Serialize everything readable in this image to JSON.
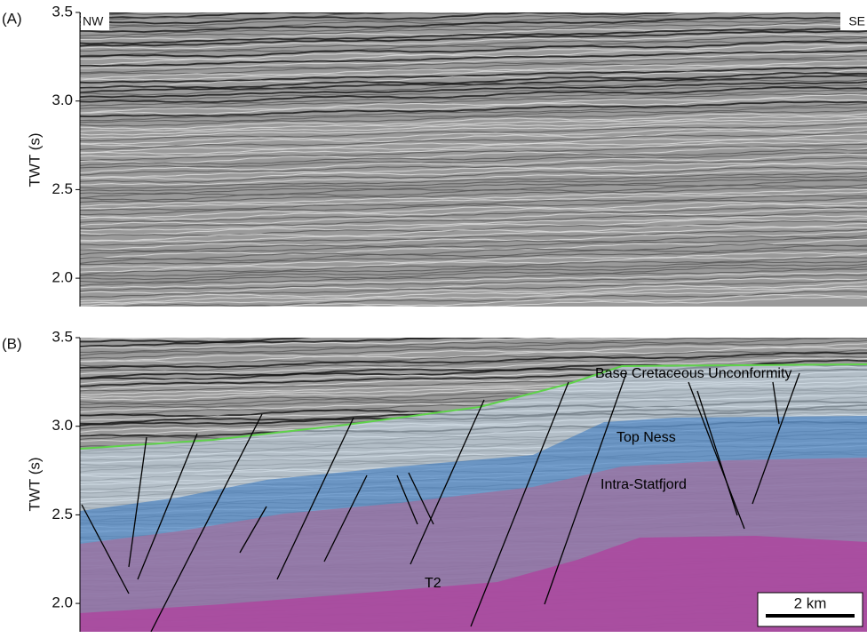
{
  "panels": [
    {
      "label": "(A)",
      "left_label": "NW",
      "right_label": "SE",
      "y_label": "TWT (s)",
      "ylim": [
        1.84,
        3.5
      ],
      "yticks": [
        {
          "value": 2.0,
          "label": "2.0"
        },
        {
          "value": 2.5,
          "label": "2.5"
        },
        {
          "value": 3.0,
          "label": "3.0"
        },
        {
          "value": 3.5,
          "label": "3.5"
        }
      ]
    },
    {
      "label": "(B)",
      "y_label": "TWT (s)",
      "ylim": [
        1.84,
        3.5
      ],
      "yticks": [
        {
          "value": 2.0,
          "label": "2.0"
        },
        {
          "value": 2.5,
          "label": "2.5"
        },
        {
          "value": 3.0,
          "label": "3.0"
        },
        {
          "value": 3.5,
          "label": "3.5"
        }
      ],
      "horizons": [
        "Base Cretaceous Unconformity",
        "Top Ness",
        "Intra-Statfjord",
        "T2"
      ],
      "scale_bar": "2 km"
    }
  ]
}
